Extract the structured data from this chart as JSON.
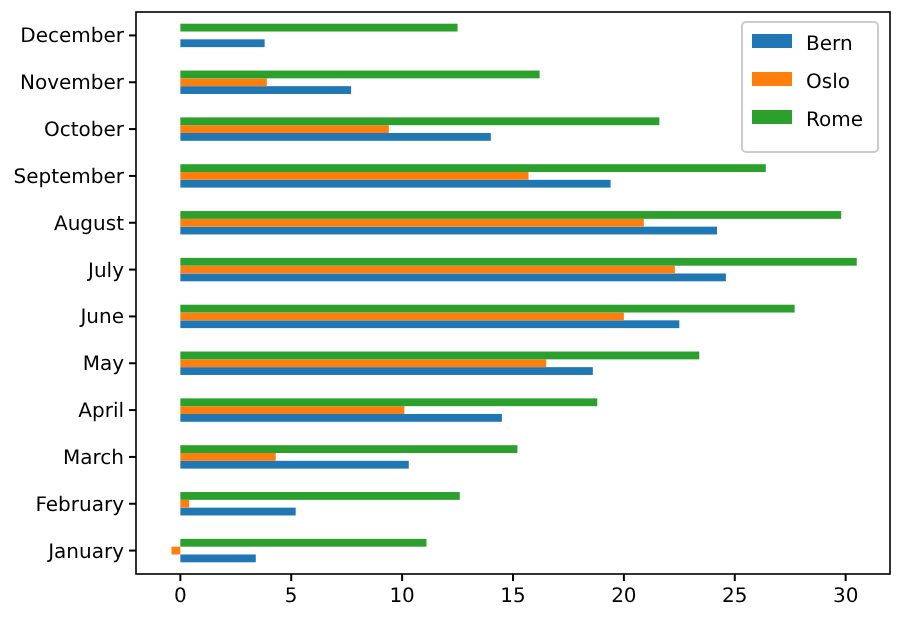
{
  "chart_data": {
    "type": "bar",
    "orientation": "horizontal",
    "categories": [
      "December",
      "November",
      "October",
      "September",
      "August",
      "July",
      "June",
      "May",
      "April",
      "March",
      "February",
      "January"
    ],
    "series": [
      {
        "name": "Bern",
        "color": "#1f77b4",
        "values": [
          3.8,
          7.7,
          14.0,
          19.4,
          24.2,
          24.6,
          22.5,
          18.6,
          14.5,
          10.3,
          5.2,
          3.4
        ]
      },
      {
        "name": "Oslo",
        "color": "#ff7f0e",
        "values": [
          0,
          3.9,
          9.4,
          15.7,
          20.9,
          22.3,
          20.0,
          16.5,
          10.1,
          4.3,
          0.4,
          -0.4
        ]
      },
      {
        "name": "Rome",
        "color": "#2ca02c",
        "values": [
          12.5,
          16.2,
          21.6,
          26.4,
          29.8,
          30.5,
          27.7,
          23.4,
          18.8,
          15.2,
          12.6,
          11.1
        ]
      }
    ],
    "xlim": [
      -2,
      32
    ],
    "xticks": [
      0,
      5,
      10,
      15,
      20,
      25,
      30
    ],
    "legend": "top right"
  }
}
